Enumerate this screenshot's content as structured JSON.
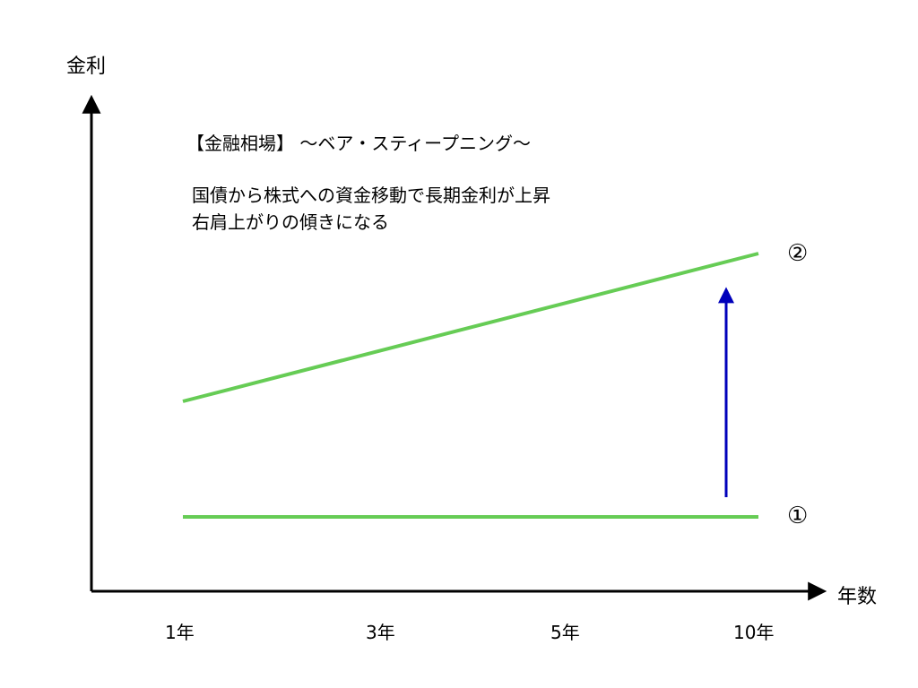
{
  "y_axis_label": "金利",
  "x_axis_label": "年数",
  "x_ticks": [
    "1年",
    "3年",
    "5年",
    "10年"
  ],
  "heading": "【金融相場】 〜ベア・スティープニング〜",
  "description_lines": [
    "国債から株式への資金移動で長期金利が上昇",
    "右肩上がりの傾きになる"
  ],
  "line_markers": [
    "①",
    "②"
  ],
  "colors": {
    "axis": "#000000",
    "curve": "#66cc55",
    "arrow": "#0000bb"
  }
}
